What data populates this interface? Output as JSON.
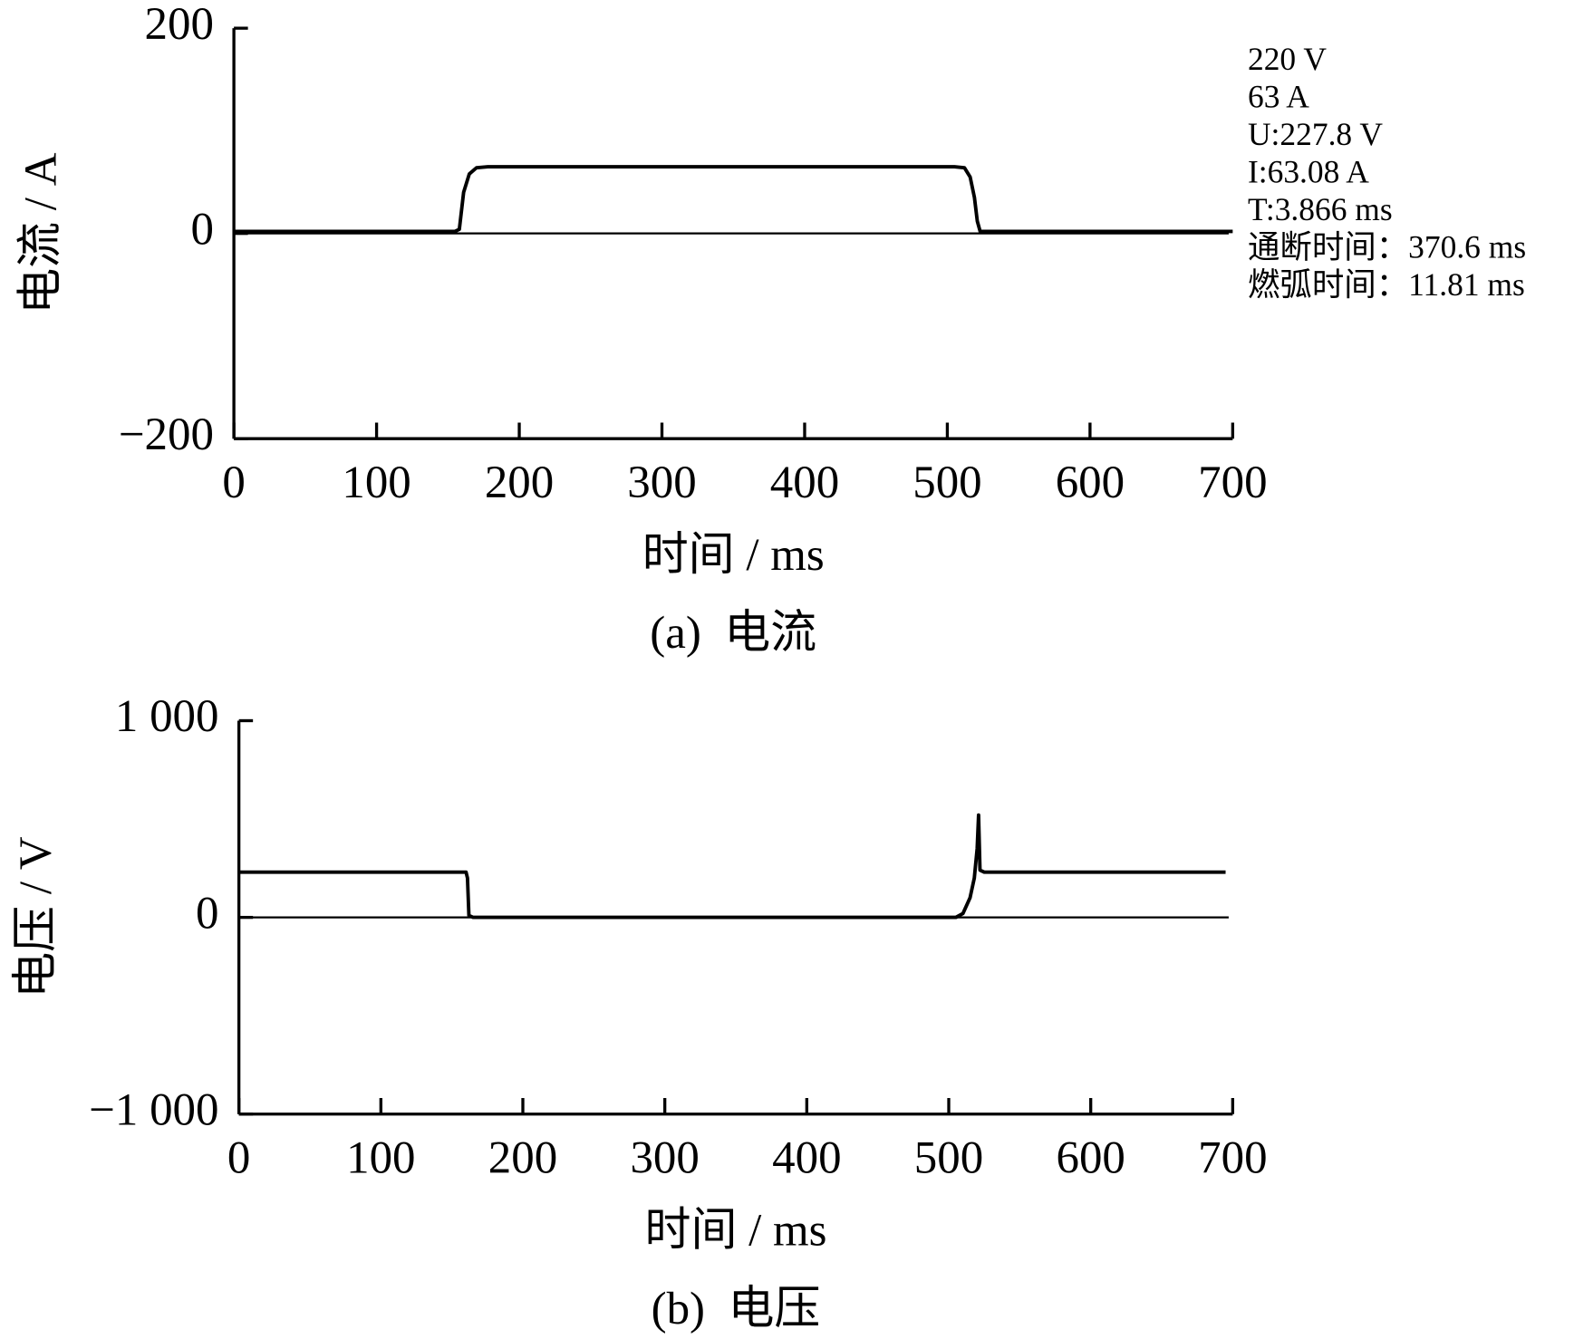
{
  "chart_data": [
    {
      "type": "line",
      "xlabel": "时间 / ms",
      "ylabel": "电流 / A",
      "caption": "(a)  电流",
      "annotations": [
        "220 V",
        "63 A",
        "U:227.8 V",
        "I:63.08 A",
        "T:3.866 ms",
        "通断时间：370.6 ms",
        "燃弧时间：11.81 ms"
      ],
      "xlim": [
        0,
        700
      ],
      "xticks": [
        0,
        100,
        200,
        300,
        400,
        500,
        600,
        700
      ],
      "ylim": [
        -200,
        200
      ],
      "yticks": [
        {
          "value": -200,
          "label": "−200"
        },
        0,
        200
      ],
      "series": [
        {
          "color": "#000000",
          "x": [
            0,
            155,
            158,
            161,
            165,
            170,
            178,
            505,
            512,
            516,
            519,
            521,
            523,
            700
          ],
          "values": [
            2,
            2,
            4,
            40,
            58,
            64,
            65,
            65,
            64,
            55,
            35,
            12,
            2,
            2
          ]
        }
      ]
    },
    {
      "type": "line",
      "xlabel": "时间 / ms",
      "ylabel": "电压 / V",
      "caption": "(b)  电压",
      "xlim": [
        0,
        700
      ],
      "xticks": [
        0,
        100,
        200,
        300,
        400,
        500,
        600,
        700
      ],
      "ylim": [
        -1000,
        1000
      ],
      "yticks": [
        {
          "value": -1000,
          "label": "−1 000"
        },
        0,
        {
          "value": 1000,
          "label": "1 000"
        }
      ],
      "series": [
        {
          "color": "#000000",
          "x": [
            0,
            160,
            161,
            162,
            165,
            505,
            510,
            515,
            518,
            520,
            521,
            522,
            525,
            695
          ],
          "values": [
            230,
            230,
            200,
            10,
            0,
            0,
            20,
            100,
            200,
            350,
            520,
            240,
            230,
            230
          ]
        }
      ]
    }
  ]
}
